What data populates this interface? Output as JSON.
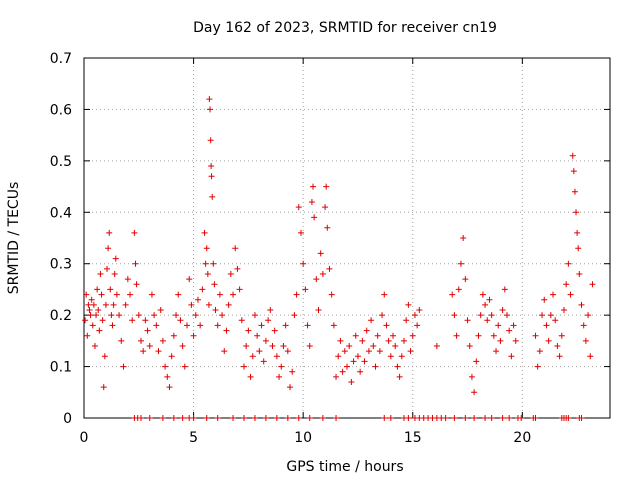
{
  "chart_data": {
    "type": "scatter",
    "title": "Day 162 of 2023, SRMTID for receiver cn19",
    "xlabel": "GPS time / hours",
    "ylabel": "SRMTID / TECUs",
    "xlim": [
      0,
      24
    ],
    "ylim": [
      0,
      0.7
    ],
    "xticks": [
      0,
      5,
      10,
      15,
      20
    ],
    "yticks": [
      0,
      0.1,
      0.2,
      0.3,
      0.4,
      0.5,
      0.6,
      0.7
    ],
    "xtick_labels": [
      "0",
      "5",
      "10",
      "15",
      "20"
    ],
    "ytick_labels": [
      "0",
      "0.1",
      "0.2",
      "0.3",
      "0.4",
      "0.5",
      "0.6",
      "0.7"
    ],
    "grid": true,
    "marker": "+",
    "color": "#e00000",
    "series": [
      {
        "name": "SRMTID",
        "points": [
          [
            0.05,
            0.19
          ],
          [
            0.1,
            0.24
          ],
          [
            0.15,
            0.16
          ],
          [
            0.2,
            0.22
          ],
          [
            0.25,
            0.21
          ],
          [
            0.3,
            0.2
          ],
          [
            0.35,
            0.23
          ],
          [
            0.4,
            0.18
          ],
          [
            0.45,
            0.22
          ],
          [
            0.5,
            0.14
          ],
          [
            0.55,
            0.2
          ],
          [
            0.6,
            0.25
          ],
          [
            0.65,
            0.21
          ],
          [
            0.7,
            0.17
          ],
          [
            0.75,
            0.28
          ],
          [
            0.8,
            0.24
          ],
          [
            0.85,
            0.19
          ],
          [
            0.9,
            0.06
          ],
          [
            0.95,
            0.12
          ],
          [
            1.0,
            0.22
          ],
          [
            1.05,
            0.29
          ],
          [
            1.1,
            0.33
          ],
          [
            1.15,
            0.36
          ],
          [
            1.2,
            0.25
          ],
          [
            1.25,
            0.2
          ],
          [
            1.3,
            0.18
          ],
          [
            1.35,
            0.22
          ],
          [
            1.4,
            0.28
          ],
          [
            1.45,
            0.31
          ],
          [
            1.5,
            0.24
          ],
          [
            1.6,
            0.2
          ],
          [
            1.7,
            0.15
          ],
          [
            1.8,
            0.1
          ],
          [
            1.9,
            0.22
          ],
          [
            2.0,
            0.27
          ],
          [
            2.1,
            0.24
          ],
          [
            2.2,
            0.19
          ],
          [
            2.3,
            0.36
          ],
          [
            2.35,
            0.3
          ],
          [
            2.4,
            0.26
          ],
          [
            2.5,
            0.2
          ],
          [
            2.6,
            0.15
          ],
          [
            2.7,
            0.13
          ],
          [
            2.8,
            0.19
          ],
          [
            2.9,
            0.17
          ],
          [
            3.0,
            0.14
          ],
          [
            3.1,
            0.24
          ],
          [
            3.2,
            0.2
          ],
          [
            3.3,
            0.18
          ],
          [
            3.4,
            0.13
          ],
          [
            3.5,
            0.21
          ],
          [
            3.6,
            0.15
          ],
          [
            3.7,
            0.1
          ],
          [
            3.8,
            0.08
          ],
          [
            3.9,
            0.06
          ],
          [
            4.0,
            0.12
          ],
          [
            4.1,
            0.16
          ],
          [
            4.2,
            0.2
          ],
          [
            4.3,
            0.24
          ],
          [
            4.4,
            0.19
          ],
          [
            4.5,
            0.14
          ],
          [
            4.6,
            0.1
          ],
          [
            4.7,
            0.18
          ],
          [
            4.8,
            0.27
          ],
          [
            4.9,
            0.22
          ],
          [
            5.0,
            0.16
          ],
          [
            5.1,
            0.2
          ],
          [
            5.2,
            0.23
          ],
          [
            5.3,
            0.18
          ],
          [
            5.4,
            0.25
          ],
          [
            5.5,
            0.36
          ],
          [
            5.55,
            0.3
          ],
          [
            5.6,
            0.33
          ],
          [
            5.65,
            0.28
          ],
          [
            5.7,
            0.22
          ],
          [
            5.72,
            0.62
          ],
          [
            5.75,
            0.6
          ],
          [
            5.78,
            0.54
          ],
          [
            5.8,
            0.49
          ],
          [
            5.82,
            0.47
          ],
          [
            5.85,
            0.43
          ],
          [
            5.9,
            0.3
          ],
          [
            5.95,
            0.26
          ],
          [
            6.0,
            0.21
          ],
          [
            6.1,
            0.18
          ],
          [
            6.2,
            0.24
          ],
          [
            6.3,
            0.2
          ],
          [
            6.4,
            0.13
          ],
          [
            6.5,
            0.17
          ],
          [
            6.6,
            0.22
          ],
          [
            6.7,
            0.28
          ],
          [
            6.8,
            0.24
          ],
          [
            6.9,
            0.33
          ],
          [
            7.0,
            0.29
          ],
          [
            7.1,
            0.25
          ],
          [
            7.2,
            0.19
          ],
          [
            7.3,
            0.1
          ],
          [
            7.4,
            0.14
          ],
          [
            7.5,
            0.17
          ],
          [
            7.6,
            0.08
          ],
          [
            7.7,
            0.12
          ],
          [
            7.8,
            0.2
          ],
          [
            7.9,
            0.16
          ],
          [
            8.0,
            0.13
          ],
          [
            8.1,
            0.18
          ],
          [
            8.2,
            0.11
          ],
          [
            8.3,
            0.15
          ],
          [
            8.4,
            0.19
          ],
          [
            8.5,
            0.21
          ],
          [
            8.6,
            0.14
          ],
          [
            8.7,
            0.17
          ],
          [
            8.8,
            0.12
          ],
          [
            8.9,
            0.08
          ],
          [
            9.0,
            0.1
          ],
          [
            9.1,
            0.14
          ],
          [
            9.2,
            0.18
          ],
          [
            9.3,
            0.13
          ],
          [
            9.4,
            0.06
          ],
          [
            9.5,
            0.09
          ],
          [
            9.6,
            0.2
          ],
          [
            9.7,
            0.24
          ],
          [
            9.8,
            0.41
          ],
          [
            9.9,
            0.36
          ],
          [
            10.0,
            0.3
          ],
          [
            10.1,
            0.25
          ],
          [
            10.2,
            0.18
          ],
          [
            10.3,
            0.14
          ],
          [
            10.4,
            0.42
          ],
          [
            10.45,
            0.45
          ],
          [
            10.5,
            0.39
          ],
          [
            10.6,
            0.27
          ],
          [
            10.7,
            0.21
          ],
          [
            10.8,
            0.32
          ],
          [
            10.9,
            0.28
          ],
          [
            11.0,
            0.41
          ],
          [
            11.05,
            0.45
          ],
          [
            11.1,
            0.37
          ],
          [
            11.2,
            0.29
          ],
          [
            11.3,
            0.24
          ],
          [
            11.4,
            0.18
          ],
          [
            11.5,
            0.08
          ],
          [
            11.6,
            0.12
          ],
          [
            11.7,
            0.15
          ],
          [
            11.8,
            0.09
          ],
          [
            11.9,
            0.13
          ],
          [
            12.0,
            0.1
          ],
          [
            12.1,
            0.14
          ],
          [
            12.2,
            0.07
          ],
          [
            12.3,
            0.11
          ],
          [
            12.4,
            0.16
          ],
          [
            12.5,
            0.12
          ],
          [
            12.6,
            0.09
          ],
          [
            12.7,
            0.15
          ],
          [
            12.8,
            0.11
          ],
          [
            12.9,
            0.17
          ],
          [
            13.0,
            0.13
          ],
          [
            13.1,
            0.19
          ],
          [
            13.2,
            0.14
          ],
          [
            13.3,
            0.1
          ],
          [
            13.4,
            0.16
          ],
          [
            13.5,
            0.13
          ],
          [
            13.6,
            0.2
          ],
          [
            13.7,
            0.24
          ],
          [
            13.8,
            0.18
          ],
          [
            13.9,
            0.15
          ],
          [
            14.0,
            0.12
          ],
          [
            14.1,
            0.16
          ],
          [
            14.2,
            0.14
          ],
          [
            14.3,
            0.1
          ],
          [
            14.4,
            0.08
          ],
          [
            14.5,
            0.12
          ],
          [
            14.6,
            0.15
          ],
          [
            14.7,
            0.19
          ],
          [
            14.8,
            0.22
          ],
          [
            14.9,
            0.13
          ],
          [
            15.0,
            0.16
          ],
          [
            15.1,
            0.2
          ],
          [
            15.2,
            0.18
          ],
          [
            15.3,
            0.21
          ],
          [
            16.1,
            0.14
          ],
          [
            16.8,
            0.24
          ],
          [
            16.9,
            0.2
          ],
          [
            17.0,
            0.16
          ],
          [
            17.1,
            0.25
          ],
          [
            17.2,
            0.3
          ],
          [
            17.3,
            0.35
          ],
          [
            17.4,
            0.27
          ],
          [
            17.5,
            0.19
          ],
          [
            17.6,
            0.14
          ],
          [
            17.7,
            0.08
          ],
          [
            17.8,
            0.05
          ],
          [
            17.9,
            0.11
          ],
          [
            18.0,
            0.16
          ],
          [
            18.1,
            0.2
          ],
          [
            18.2,
            0.24
          ],
          [
            18.3,
            0.22
          ],
          [
            18.4,
            0.19
          ],
          [
            18.5,
            0.23
          ],
          [
            18.6,
            0.2
          ],
          [
            18.7,
            0.16
          ],
          [
            18.8,
            0.13
          ],
          [
            18.9,
            0.18
          ],
          [
            19.0,
            0.15
          ],
          [
            19.1,
            0.21
          ],
          [
            19.2,
            0.25
          ],
          [
            19.3,
            0.2
          ],
          [
            19.4,
            0.17
          ],
          [
            19.5,
            0.12
          ],
          [
            19.6,
            0.18
          ],
          [
            19.7,
            0.15
          ],
          [
            20.6,
            0.16
          ],
          [
            20.7,
            0.1
          ],
          [
            20.8,
            0.13
          ],
          [
            20.9,
            0.2
          ],
          [
            21.0,
            0.23
          ],
          [
            21.1,
            0.18
          ],
          [
            21.2,
            0.15
          ],
          [
            21.3,
            0.2
          ],
          [
            21.4,
            0.24
          ],
          [
            21.5,
            0.19
          ],
          [
            21.6,
            0.14
          ],
          [
            21.7,
            0.12
          ],
          [
            21.8,
            0.16
          ],
          [
            21.9,
            0.21
          ],
          [
            22.0,
            0.26
          ],
          [
            22.1,
            0.3
          ],
          [
            22.2,
            0.24
          ],
          [
            22.3,
            0.51
          ],
          [
            22.35,
            0.48
          ],
          [
            22.4,
            0.44
          ],
          [
            22.45,
            0.4
          ],
          [
            22.5,
            0.36
          ],
          [
            22.55,
            0.33
          ],
          [
            22.6,
            0.28
          ],
          [
            22.7,
            0.22
          ],
          [
            22.8,
            0.18
          ],
          [
            22.9,
            0.15
          ],
          [
            23.0,
            0.2
          ],
          [
            23.1,
            0.12
          ],
          [
            23.2,
            0.26
          ]
        ],
        "zero_points": [
          2.3,
          2.45,
          2.6,
          3.0,
          3.6,
          4.1,
          4.5,
          4.8,
          5.0,
          5.6,
          6.1,
          6.8,
          7.3,
          7.8,
          8.3,
          8.8,
          9.3,
          9.8,
          10.3,
          10.9,
          11.5,
          13.7,
          14.0,
          14.6,
          14.8,
          15.1,
          15.3,
          15.5,
          15.7,
          15.9,
          16.1,
          16.3,
          16.5,
          16.9,
          17.4,
          17.8,
          18.3,
          18.6,
          19.1,
          19.4,
          19.8,
          19.95,
          20.5,
          20.6,
          21.8,
          21.9,
          22.0,
          22.1,
          22.6,
          22.7
        ]
      }
    ]
  }
}
